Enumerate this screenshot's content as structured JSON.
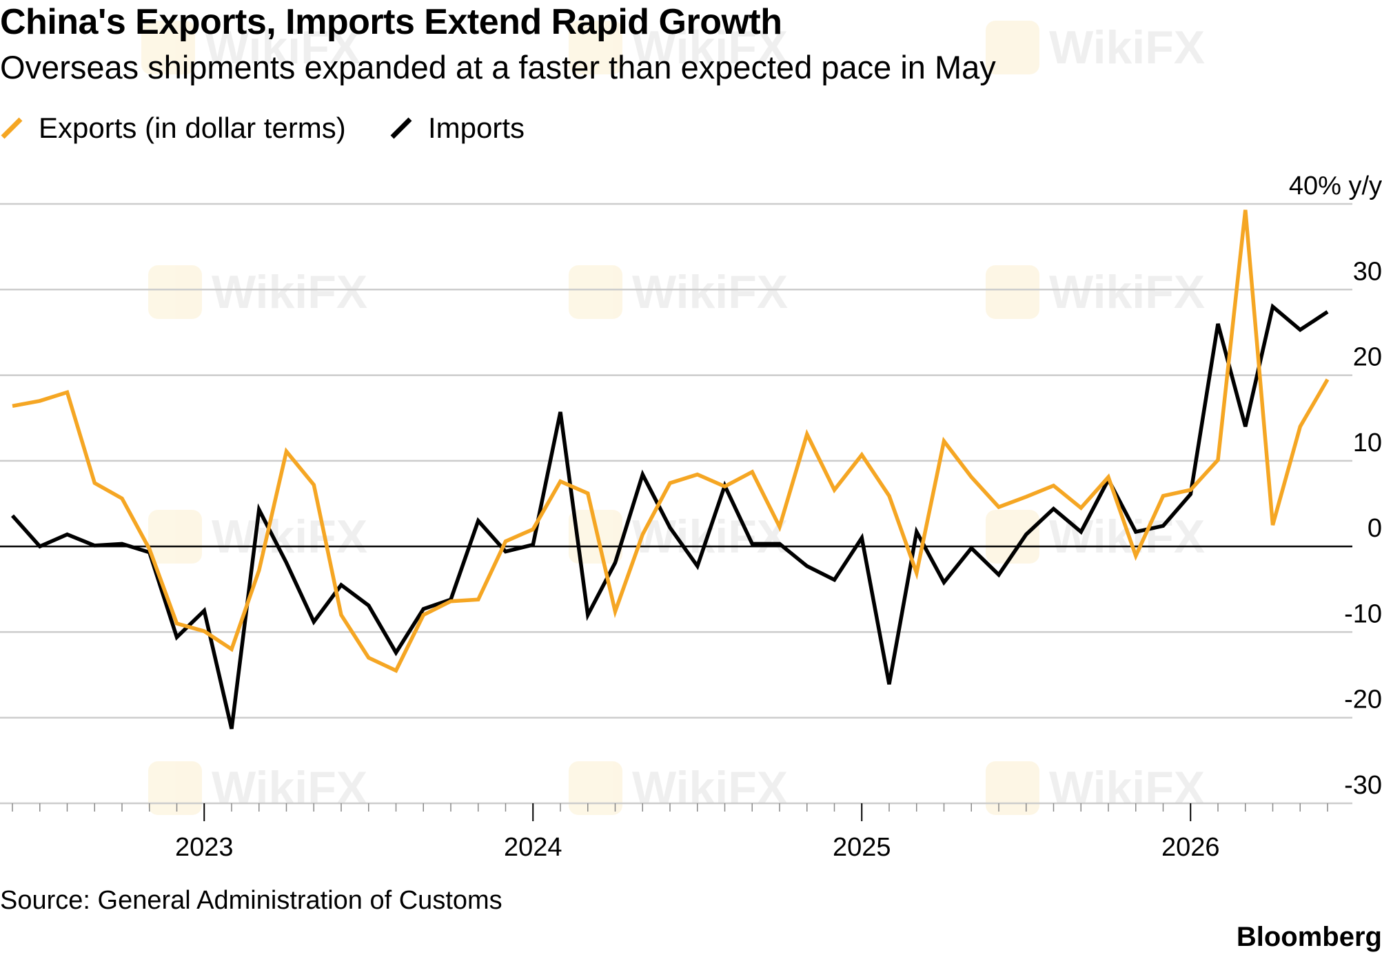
{
  "title": "China's Exports, Imports Extend Rapid Growth",
  "subtitle": "Overseas shipments expanded at a faster than expected pace in May",
  "source": "Source: General Administration of Customs",
  "brand": "Bloomberg",
  "watermark_text": "WikiFX",
  "colors": {
    "exports": "#f5a623",
    "imports": "#000000",
    "grid": "#cccccc",
    "zero_line": "#000000"
  },
  "chart_data": {
    "type": "line",
    "title": "China's Exports, Imports Extend Rapid Growth",
    "subtitle": "Overseas shipments expanded at a faster than expected pace in May",
    "xlabel": "",
    "ylabel": "",
    "y_unit_label": "40% y/y",
    "y_ticks": [
      40,
      30,
      20,
      10,
      0,
      -10,
      -20,
      -30
    ],
    "y_tick_labels": [
      "40% y/y",
      "30",
      "20",
      "10",
      "0",
      "-10",
      "-20",
      "-30"
    ],
    "ylim": [
      -30,
      40
    ],
    "x_tick_labels": [
      "2023",
      "2024",
      "2025",
      "2026"
    ],
    "x": [
      "2022-06",
      "2022-07",
      "2022-08",
      "2022-09",
      "2022-10",
      "2022-11",
      "2022-12",
      "2023-01",
      "2023-02",
      "2023-03",
      "2023-04",
      "2023-05",
      "2023-06",
      "2023-07",
      "2023-08",
      "2023-09",
      "2023-10",
      "2023-11",
      "2023-12",
      "2024-01",
      "2024-02",
      "2024-03",
      "2024-04",
      "2024-05",
      "2024-06",
      "2024-07",
      "2024-08",
      "2024-09",
      "2024-10",
      "2024-11",
      "2024-12",
      "2025-01",
      "2025-02",
      "2025-03",
      "2025-04",
      "2025-05",
      "2025-06",
      "2025-07",
      "2025-08",
      "2025-09",
      "2025-10",
      "2025-11",
      "2025-12",
      "2026-01",
      "2026-02",
      "2026-03",
      "2026-04",
      "2026-05",
      "2026-06"
    ],
    "grid": true,
    "legend_position": "top-left",
    "series": [
      {
        "name": "Exports (in dollar terms)",
        "values": [
          16.4,
          17.0,
          18.0,
          7.4,
          5.6,
          -0.3,
          -9.0,
          -9.9,
          -12.0,
          -2.8,
          11.1,
          7.2,
          -8.0,
          -13.0,
          -14.5,
          -8.0,
          -6.4,
          -6.2,
          0.6,
          2.0,
          7.6,
          6.2,
          -7.6,
          1.4,
          7.4,
          8.4,
          7.0,
          8.7,
          2.3,
          13.1,
          6.6,
          10.7,
          5.9,
          -3.1,
          12.3,
          8.1,
          4.6,
          5.8,
          7.1,
          4.5,
          8.1,
          -1.1,
          5.9,
          6.6,
          10.1,
          39.3,
          2.5,
          14.0,
          19.5
        ]
      },
      {
        "name": "Imports",
        "values": [
          3.6,
          0.0,
          1.4,
          0.1,
          0.3,
          -0.7,
          -10.6,
          -7.5,
          -21.3,
          4.3,
          -1.9,
          -8.8,
          -4.5,
          -6.9,
          -12.4,
          -7.3,
          -6.2,
          3.0,
          -0.6,
          0.2,
          15.7,
          -8.0,
          -1.9,
          8.4,
          2.2,
          -2.3,
          7.1,
          0.3,
          0.3,
          -2.3,
          -3.9,
          1.0,
          -16.1,
          1.7,
          -4.2,
          -0.2,
          -3.3,
          1.4,
          4.4,
          1.7,
          7.8,
          1.7,
          2.4,
          6.1,
          26.0,
          14.0,
          28.0,
          25.3,
          27.4
        ]
      }
    ]
  }
}
